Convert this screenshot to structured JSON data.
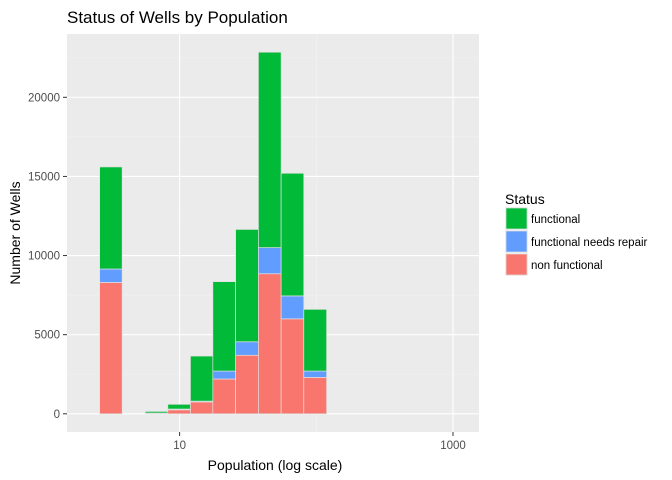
{
  "chart_data": {
    "type": "bar",
    "stacked": true,
    "title": "Status of Wells by Population",
    "xlabel": "Population (log scale)",
    "ylabel": "Number of Wells",
    "x_scale": "log10",
    "x_ticks": [
      10,
      1000
    ],
    "x_tick_labels": [
      "10",
      "1000"
    ],
    "y_ticks": [
      0,
      5000,
      10000,
      15000,
      20000
    ],
    "y_tick_labels": [
      "0",
      "5000",
      "10000",
      "15000",
      "20000"
    ],
    "ylim": [
      -1150,
      24000
    ],
    "xlim": [
      1.5,
      1550
    ],
    "grid": true,
    "legend": {
      "title": "Status",
      "position": "right",
      "entries": [
        "functional",
        "functional needs repair",
        "non functional"
      ]
    },
    "bins": [
      [
        2.6,
        3.8
      ],
      [
        3.8,
        5.6
      ],
      [
        5.6,
        8.2
      ],
      [
        8.2,
        12.0
      ],
      [
        12.0,
        17.5
      ],
      [
        17.5,
        25.7
      ],
      [
        25.7,
        37.7
      ],
      [
        37.7,
        55.3
      ],
      [
        55.3,
        81.0
      ],
      [
        81.0,
        119.0
      ],
      [
        119.0,
        174.5
      ]
    ],
    "series": [
      {
        "name": "non functional",
        "color": "#F8766D",
        "values": [
          8300,
          0,
          40,
          250,
          750,
          2200,
          3700,
          8850,
          6000,
          2300,
          0
        ]
      },
      {
        "name": "functional needs repair",
        "color": "#619CFF",
        "values": [
          850,
          0,
          10,
          50,
          50,
          500,
          850,
          1650,
          1450,
          400,
          0
        ]
      },
      {
        "name": "functional",
        "color": "#00BA38",
        "values": [
          6450,
          0,
          100,
          300,
          2850,
          5650,
          7100,
          12350,
          7750,
          3900,
          0
        ]
      }
    ],
    "colors": {
      "panel_background": "#EBEBEB",
      "grid_major": "#FFFFFF",
      "grid_minor": "#F2F2F2",
      "bar_outline": "#E0E0E0"
    }
  }
}
